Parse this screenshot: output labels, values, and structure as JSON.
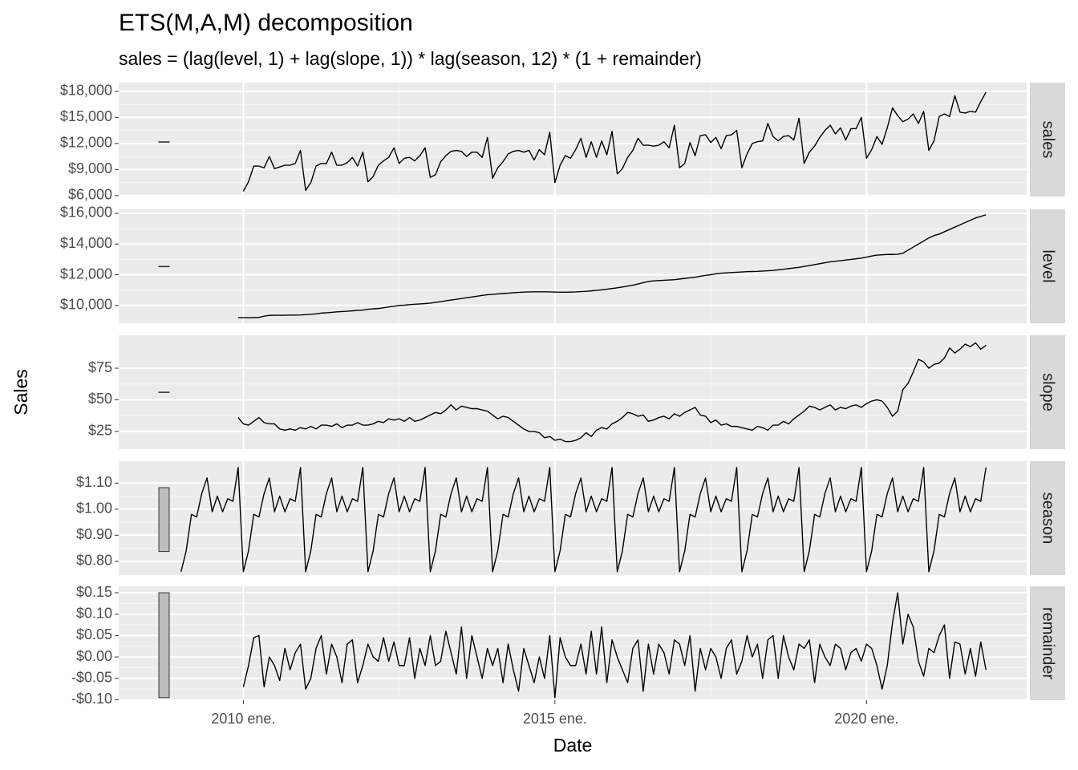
{
  "chart_data": {
    "type": "line",
    "title": "ETS(M,A,M) decomposition",
    "subtitle": "sales = (lag(level, 1) + lag(slope, 1)) * lag(season, 12) * (1 + remainder)",
    "xlabel": "Date",
    "ylabel": "Sales",
    "xlim": [
      2008.0,
      2022.57
    ],
    "xticks": [
      {
        "value": 2010,
        "label": "2010 ene."
      },
      {
        "value": 2015,
        "label": "2015 ene."
      },
      {
        "value": 2020,
        "label": "2020 ene."
      }
    ],
    "grid": true,
    "color": "#000000",
    "x": [
      2009,
      2009.083,
      2009.167,
      2009.25,
      2009.333,
      2009.417,
      2009.5,
      2009.583,
      2009.667,
      2009.75,
      2009.833,
      2009.917,
      2010,
      2010.083,
      2010.167,
      2010.25,
      2010.333,
      2010.417,
      2010.5,
      2010.583,
      2010.667,
      2010.75,
      2010.833,
      2010.917,
      2011,
      2011.083,
      2011.167,
      2011.25,
      2011.333,
      2011.417,
      2011.5,
      2011.583,
      2011.667,
      2011.75,
      2011.833,
      2011.917,
      2012,
      2012.083,
      2012.167,
      2012.25,
      2012.333,
      2012.417,
      2012.5,
      2012.583,
      2012.667,
      2012.75,
      2012.833,
      2012.917,
      2013,
      2013.083,
      2013.167,
      2013.25,
      2013.333,
      2013.417,
      2013.5,
      2013.583,
      2013.667,
      2013.75,
      2013.833,
      2013.917,
      2014,
      2014.083,
      2014.167,
      2014.25,
      2014.333,
      2014.417,
      2014.5,
      2014.583,
      2014.667,
      2014.75,
      2014.833,
      2014.917,
      2015,
      2015.083,
      2015.167,
      2015.25,
      2015.333,
      2015.417,
      2015.5,
      2015.583,
      2015.667,
      2015.75,
      2015.833,
      2015.917,
      2016,
      2016.083,
      2016.167,
      2016.25,
      2016.333,
      2016.417,
      2016.5,
      2016.583,
      2016.667,
      2016.75,
      2016.833,
      2016.917,
      2017,
      2017.083,
      2017.167,
      2017.25,
      2017.333,
      2017.417,
      2017.5,
      2017.583,
      2017.667,
      2017.75,
      2017.833,
      2017.917,
      2018,
      2018.083,
      2018.167,
      2018.25,
      2018.333,
      2018.417,
      2018.5,
      2018.583,
      2018.667,
      2018.75,
      2018.833,
      2018.917,
      2019,
      2019.083,
      2019.167,
      2019.25,
      2019.333,
      2019.417,
      2019.5,
      2019.583,
      2019.667,
      2019.75,
      2019.833,
      2019.917,
      2020,
      2020.083,
      2020.167,
      2020.25,
      2020.333,
      2020.417,
      2020.5,
      2020.583,
      2020.667,
      2020.75,
      2020.833,
      2020.917,
      2021,
      2021.083,
      2021.167,
      2021.25,
      2021.333,
      2021.417,
      2021.5,
      2021.583,
      2021.667,
      2021.75,
      2021.833,
      2021.917
    ],
    "panels": [
      {
        "name": "sales",
        "ylim": [
          5900,
          19000
        ],
        "yticks": [
          {
            "value": 6000,
            "label": "$6,000"
          },
          {
            "value": 9000,
            "label": "$9,000"
          },
          {
            "value": 12000,
            "label": "$12,000"
          },
          {
            "value": 15000,
            "label": "$15,000"
          },
          {
            "value": 18000,
            "label": "$18,000"
          }
        ],
        "values": [
          null,
          null,
          null,
          null,
          null,
          null,
          null,
          null,
          null,
          null,
          null,
          null,
          6500,
          7600,
          9400,
          9400,
          9200,
          10500,
          9100,
          9300,
          9500,
          9500,
          9700,
          11200,
          6600,
          7500,
          9400,
          9700,
          9700,
          11000,
          9500,
          9500,
          9800,
          10400,
          9400,
          11000,
          7600,
          8200,
          9500,
          10000,
          10400,
          11500,
          9700,
          10300,
          10400,
          10000,
          10600,
          11500,
          8100,
          8400,
          9900,
          10600,
          11100,
          11200,
          11100,
          10500,
          11000,
          11000,
          10400,
          12700,
          8000,
          9200,
          9900,
          10800,
          11100,
          11200,
          11000,
          11200,
          10100,
          11300,
          10700,
          13300,
          7500,
          9500,
          10600,
          10300,
          11300,
          12600,
          10400,
          12200,
          10400,
          12300,
          10700,
          13400,
          8500,
          9100,
          10400,
          11200,
          12600,
          11800,
          11800,
          11700,
          11800,
          12200,
          11500,
          14100,
          9200,
          9700,
          12100,
          10600,
          12900,
          13000,
          12100,
          12700,
          11400,
          12900,
          13000,
          13500,
          9200,
          10800,
          12000,
          12200,
          12300,
          14300,
          12800,
          12300,
          12800,
          12900,
          12400,
          14900,
          9700,
          11000,
          11700,
          12700,
          13500,
          14100,
          13100,
          13800,
          12400,
          13700,
          13700,
          15000,
          10300,
          11300,
          12800,
          11900,
          13800,
          16100,
          15200,
          14500,
          14800,
          15400,
          14300,
          15700,
          11200,
          12300,
          15100,
          15400,
          15100,
          17500,
          15600,
          15500,
          15700,
          15600,
          16800,
          17900
        ]
      },
      {
        "name": "level",
        "ylim": [
          8840,
          16260
        ],
        "yticks": [
          {
            "value": 10000,
            "label": "$10,000"
          },
          {
            "value": 12000,
            "label": "$12,000"
          },
          {
            "value": 14000,
            "label": "$14,000"
          },
          {
            "value": 16000,
            "label": "$16,000"
          }
        ],
        "values": [
          null,
          null,
          null,
          null,
          null,
          null,
          null,
          null,
          null,
          null,
          null,
          9200,
          9200,
          9200,
          9210,
          9220,
          9300,
          9350,
          9360,
          9360,
          9360,
          9370,
          9370,
          9380,
          9400,
          9420,
          9450,
          9500,
          9520,
          9550,
          9580,
          9600,
          9620,
          9650,
          9680,
          9700,
          9750,
          9780,
          9800,
          9850,
          9900,
          9950,
          10000,
          10020,
          10050,
          10080,
          10100,
          10120,
          10150,
          10200,
          10250,
          10300,
          10350,
          10400,
          10450,
          10500,
          10550,
          10600,
          10650,
          10700,
          10720,
          10750,
          10780,
          10800,
          10830,
          10850,
          10870,
          10880,
          10890,
          10890,
          10890,
          10880,
          10870,
          10860,
          10860,
          10870,
          10880,
          10900,
          10920,
          10950,
          10980,
          11020,
          11060,
          11100,
          11150,
          11200,
          11260,
          11320,
          11400,
          11480,
          11560,
          11600,
          11620,
          11640,
          11660,
          11680,
          11720,
          11760,
          11800,
          11840,
          11900,
          11960,
          12000,
          12060,
          12100,
          12120,
          12140,
          12160,
          12180,
          12200,
          12210,
          12220,
          12240,
          12260,
          12280,
          12320,
          12360,
          12400,
          12440,
          12480,
          12540,
          12600,
          12660,
          12720,
          12780,
          12840,
          12880,
          12920,
          12960,
          13000,
          13040,
          13080,
          13150,
          13220,
          13280,
          13300,
          13320,
          13320,
          13330,
          13400,
          13600,
          13800,
          14000,
          14200,
          14400,
          14550,
          14650,
          14800,
          14950,
          15100,
          15250,
          15400,
          15550,
          15700,
          15800,
          15900
        ]
      },
      {
        "name": "slope",
        "ylim": [
          11,
          101
        ],
        "yticks": [
          {
            "value": 25,
            "label": "$25"
          },
          {
            "value": 50,
            "label": "$50"
          },
          {
            "value": 75,
            "label": "$75"
          }
        ],
        "values": [
          null,
          null,
          null,
          null,
          null,
          null,
          null,
          null,
          null,
          null,
          null,
          36,
          31,
          30,
          33,
          36,
          32,
          31,
          31,
          27,
          26,
          27,
          26,
          28,
          27,
          29,
          27,
          30,
          30,
          29,
          31,
          28,
          30,
          30,
          32,
          30,
          30,
          31,
          33,
          32,
          35,
          34,
          35,
          33,
          36,
          33,
          34,
          36,
          38,
          40,
          39,
          42,
          46,
          42,
          45,
          44,
          43,
          43,
          42,
          41,
          38,
          35,
          37,
          36,
          33,
          30,
          27,
          25,
          25,
          24,
          20,
          21,
          18,
          19,
          17,
          17,
          18,
          20,
          24,
          21,
          26,
          28,
          27,
          31,
          33,
          36,
          40,
          39,
          37,
          38,
          33,
          34,
          36,
          37,
          35,
          39,
          37,
          40,
          42,
          44,
          38,
          37,
          32,
          34,
          30,
          31,
          29,
          29,
          28,
          27,
          26,
          29,
          28,
          26,
          30,
          30,
          33,
          31,
          35,
          38,
          41,
          45,
          44,
          42,
          44,
          46,
          42,
          44,
          43,
          45,
          46,
          44,
          47,
          49,
          50,
          49,
          44,
          37,
          41,
          58,
          63,
          72,
          82,
          80,
          75,
          78,
          79,
          83,
          91,
          87,
          90,
          94,
          92,
          95,
          90,
          93
        ]
      },
      {
        "name": "season",
        "ylim": [
          0.747,
          1.184
        ],
        "yticks": [
          {
            "value": 0.8,
            "label": "$0.80"
          },
          {
            "value": 0.9,
            "label": "$0.90"
          },
          {
            "value": 1.0,
            "label": "$1.00"
          },
          {
            "value": 1.1,
            "label": "$1.10"
          }
        ],
        "values": [
          0.76,
          0.84,
          0.98,
          0.97,
          1.06,
          1.12,
          0.99,
          1.05,
          0.99,
          1.04,
          1.03,
          1.16,
          0.76,
          0.84,
          0.98,
          0.97,
          1.06,
          1.12,
          0.99,
          1.05,
          0.99,
          1.04,
          1.03,
          1.16,
          0.76,
          0.84,
          0.98,
          0.97,
          1.06,
          1.12,
          0.99,
          1.05,
          0.99,
          1.04,
          1.03,
          1.16,
          0.76,
          0.84,
          0.98,
          0.97,
          1.06,
          1.12,
          0.99,
          1.05,
          0.99,
          1.04,
          1.03,
          1.16,
          0.76,
          0.84,
          0.98,
          0.97,
          1.06,
          1.12,
          0.99,
          1.05,
          0.99,
          1.04,
          1.03,
          1.16,
          0.76,
          0.84,
          0.98,
          0.97,
          1.06,
          1.12,
          0.99,
          1.05,
          0.99,
          1.04,
          1.03,
          1.16,
          0.76,
          0.84,
          0.98,
          0.97,
          1.06,
          1.12,
          0.99,
          1.05,
          0.99,
          1.04,
          1.03,
          1.16,
          0.76,
          0.84,
          0.98,
          0.97,
          1.06,
          1.12,
          0.99,
          1.05,
          0.99,
          1.04,
          1.03,
          1.16,
          0.76,
          0.84,
          0.98,
          0.97,
          1.06,
          1.12,
          0.99,
          1.05,
          0.99,
          1.04,
          1.03,
          1.16,
          0.76,
          0.84,
          0.98,
          0.97,
          1.06,
          1.12,
          0.99,
          1.05,
          0.99,
          1.04,
          1.03,
          1.16,
          0.76,
          0.84,
          0.98,
          0.97,
          1.06,
          1.12,
          0.99,
          1.05,
          0.99,
          1.04,
          1.03,
          1.16,
          0.76,
          0.84,
          0.98,
          0.97,
          1.06,
          1.12,
          0.99,
          1.05,
          0.99,
          1.04,
          1.03,
          1.16,
          0.76,
          0.84,
          0.98,
          0.97,
          1.06,
          1.12,
          0.99,
          1.05,
          0.99,
          1.04,
          1.03,
          1.16
        ]
      },
      {
        "name": "remainder",
        "ylim": [
          -0.101,
          0.165
        ],
        "yticks": [
          {
            "value": -0.1,
            "label": "-$0.10"
          },
          {
            "value": -0.05,
            "label": "-$0.05"
          },
          {
            "value": 0,
            "label": "$0.00"
          },
          {
            "value": 0.05,
            "label": "$0.05"
          },
          {
            "value": 0.1,
            "label": "$0.10"
          },
          {
            "value": 0.15,
            "label": "$0.15"
          }
        ],
        "values": [
          null,
          null,
          null,
          null,
          null,
          null,
          null,
          null,
          null,
          null,
          null,
          null,
          -0.07,
          -0.02,
          0.045,
          0.05,
          -0.07,
          0.0,
          -0.02,
          -0.055,
          0.02,
          -0.03,
          0.01,
          0.03,
          -0.075,
          -0.05,
          0.02,
          0.05,
          -0.04,
          0.03,
          0.0,
          -0.06,
          0.03,
          0.04,
          -0.06,
          -0.02,
          0.03,
          0.0,
          -0.01,
          0.045,
          -0.01,
          0.035,
          -0.02,
          -0.02,
          0.045,
          -0.05,
          0.02,
          -0.02,
          0.05,
          -0.02,
          -0.01,
          0.06,
          0.01,
          -0.04,
          0.07,
          -0.05,
          0.05,
          0.0,
          -0.05,
          0.02,
          -0.02,
          0.02,
          -0.06,
          0.03,
          -0.03,
          -0.08,
          0.02,
          -0.02,
          -0.06,
          0.0,
          -0.05,
          0.05,
          -0.095,
          0.045,
          0.0,
          -0.02,
          -0.02,
          0.03,
          -0.04,
          0.06,
          -0.04,
          0.07,
          -0.06,
          0.04,
          0.0,
          -0.03,
          -0.06,
          0.02,
          0.04,
          -0.08,
          0.03,
          -0.04,
          0.03,
          0.01,
          -0.04,
          0.04,
          0.03,
          -0.02,
          0.05,
          -0.08,
          0.02,
          -0.03,
          0.02,
          0.0,
          -0.05,
          0.02,
          0.04,
          -0.04,
          -0.01,
          0.05,
          0.0,
          0.03,
          -0.05,
          0.04,
          0.05,
          -0.05,
          0.05,
          0.0,
          -0.03,
          0.03,
          0.02,
          0.04,
          -0.06,
          0.03,
          0.0,
          -0.02,
          0.03,
          0.02,
          -0.03,
          0.01,
          0.02,
          -0.01,
          0.03,
          0.02,
          -0.02,
          -0.075,
          -0.02,
          0.08,
          0.15,
          0.03,
          0.1,
          0.07,
          -0.01,
          -0.045,
          0.02,
          0.01,
          0.05,
          0.075,
          -0.05,
          0.035,
          0.03,
          -0.04,
          0.02,
          -0.045,
          0.035,
          -0.03
        ]
      }
    ]
  }
}
